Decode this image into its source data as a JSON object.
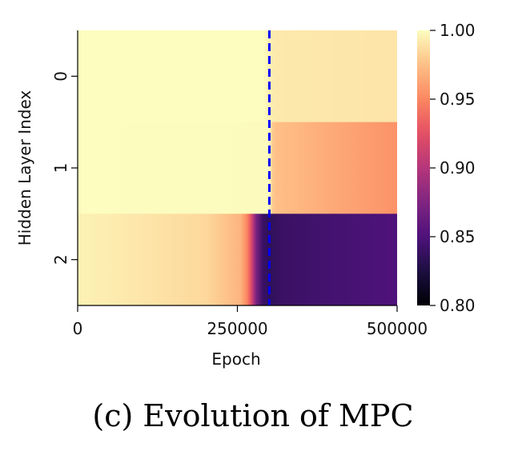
{
  "caption": "(c) Evolution of MPC",
  "chart_data": {
    "type": "heatmap",
    "xlabel": "Epoch",
    "ylabel": "Hidden Layer Index",
    "xlim": [
      0,
      500000
    ],
    "x_ticks": [
      0,
      250000,
      500000
    ],
    "x_tick_labels": [
      "0",
      "250000",
      "500000"
    ],
    "rows": [
      "0",
      "1",
      "2"
    ],
    "colorbar": {
      "colormap": "magma",
      "range": [
        0.8,
        1.0
      ],
      "ticks": [
        1.0,
        0.95,
        0.9,
        0.85,
        0.8
      ],
      "tick_labels": [
        "1.00",
        "0.95",
        "0.90",
        "0.85",
        "0.80"
      ]
    },
    "marker_line": {
      "x": 300000,
      "style": "dashed",
      "color": "#0000ff"
    },
    "series": [
      {
        "row": "0",
        "x": [
          0,
          290000,
          300000,
          310000,
          500000
        ],
        "values": [
          1.0,
          1.0,
          0.995,
          0.992,
          0.99
        ]
      },
      {
        "row": "1",
        "x": [
          0,
          300000,
          305000,
          310000,
          400000,
          500000
        ],
        "values": [
          1.0,
          0.999,
          0.98,
          0.975,
          0.965,
          0.955
        ]
      },
      {
        "row": "2",
        "x": [
          0,
          50000,
          200000,
          255000,
          265000,
          270000,
          275000,
          280000,
          290000,
          300000,
          320000,
          400000,
          500000
        ],
        "values": [
          0.995,
          0.993,
          0.985,
          0.97,
          0.95,
          0.93,
          0.9,
          0.87,
          0.84,
          0.835,
          0.84,
          0.845,
          0.85
        ]
      }
    ]
  }
}
